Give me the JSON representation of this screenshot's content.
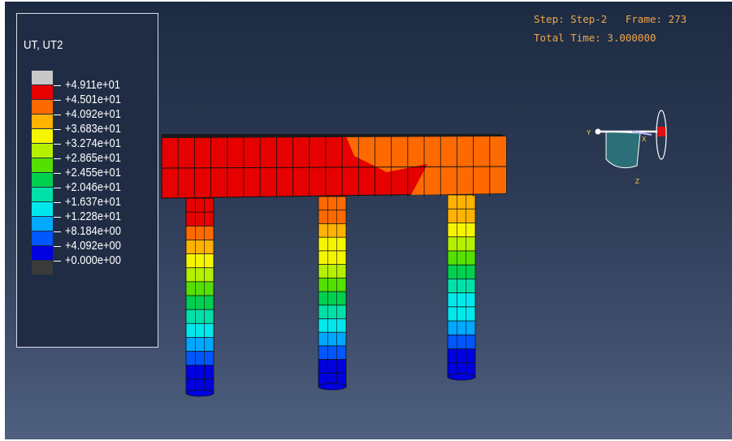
{
  "legend": {
    "title": "UT, UT2",
    "entries": [
      {
        "label": "+4.911e+01",
        "color": "#c8c8c8"
      },
      {
        "label": "+4.501e+01",
        "color": "#e60000"
      },
      {
        "label": "+4.092e+01",
        "color": "#ff6a00"
      },
      {
        "label": "+3.683e+01",
        "color": "#ffb200"
      },
      {
        "label": "+3.274e+01",
        "color": "#f5f500"
      },
      {
        "label": "+2.865e+01",
        "color": "#b4f000"
      },
      {
        "label": "+2.455e+01",
        "color": "#54e000"
      },
      {
        "label": "+2.046e+01",
        "color": "#00d050"
      },
      {
        "label": "+1.637e+01",
        "color": "#00e0a8"
      },
      {
        "label": "+1.228e+01",
        "color": "#00e8ec"
      },
      {
        "label": "+8.184e+00",
        "color": "#00a8ff"
      },
      {
        "label": "+4.092e+00",
        "color": "#0056ff"
      },
      {
        "label": "+0.000e+00",
        "color": "#0000e0"
      },
      {
        "label": "",
        "color": "#3a3a3a"
      }
    ]
  },
  "status": {
    "step_line": "Step: Step-2   Frame: 273",
    "time_line": "Total Time: 3.000000"
  },
  "triad": {
    "x_label": "X",
    "y_label": "Y",
    "z_label": "Z"
  }
}
